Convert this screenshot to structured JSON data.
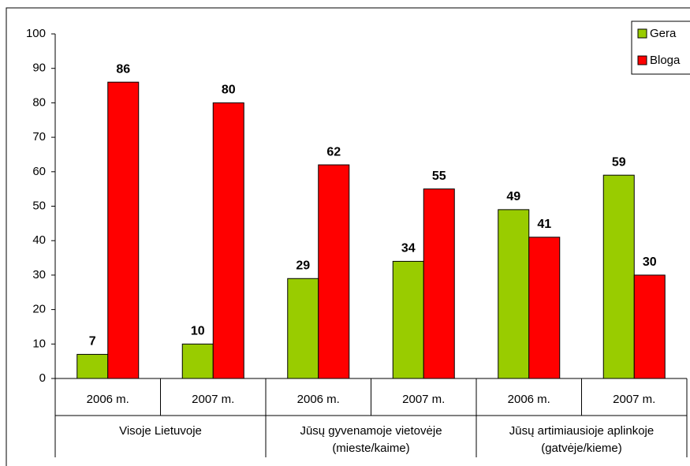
{
  "chart_data": {
    "type": "bar",
    "categories": [
      "2006 m.",
      "2007 m.",
      "2006 m.",
      "2007 m.",
      "2006 m.",
      "2007 m."
    ],
    "groups": [
      [
        "Visoje Lietuvoje"
      ],
      [
        "Jūsų gyvenamoje vietovėje",
        "(mieste/kaime)"
      ],
      [
        "Jūsų artimiausioje aplinkoje",
        "(gatvėje/kieme)"
      ]
    ],
    "series": [
      {
        "name": "Gera",
        "color": "#99cc00",
        "values": [
          7,
          10,
          29,
          34,
          49,
          59
        ]
      },
      {
        "name": "Bloga",
        "color": "#ff0000",
        "values": [
          86,
          80,
          62,
          55,
          41,
          30
        ]
      }
    ],
    "ylim": [
      0,
      100
    ],
    "yticks": [
      0,
      10,
      20,
      30,
      40,
      50,
      60,
      70,
      80,
      90,
      100
    ],
    "grid": false,
    "legend": "top-right"
  }
}
